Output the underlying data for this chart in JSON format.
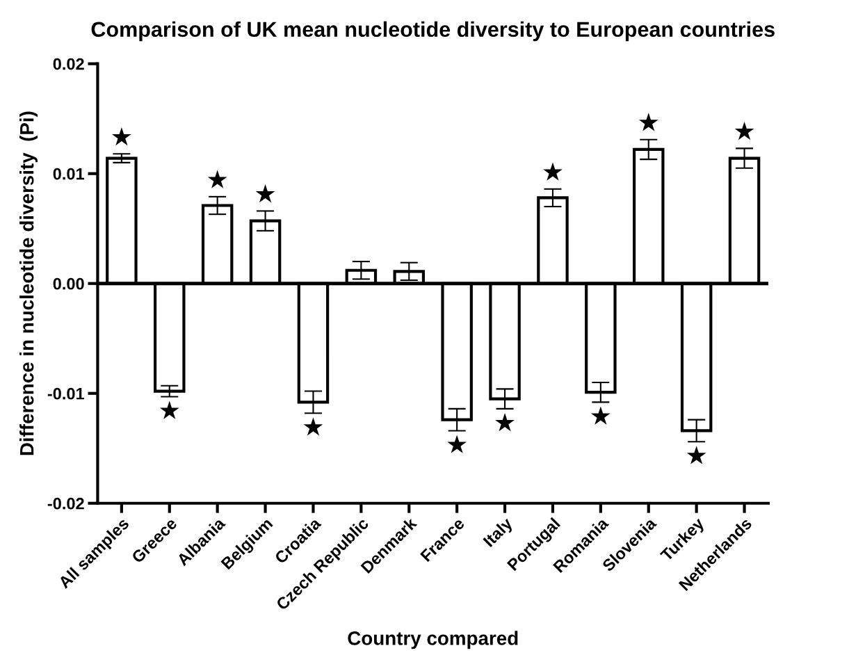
{
  "chart_data": {
    "type": "bar",
    "title": "Comparison of UK mean nucleotide diversity to European countries",
    "xlabel": "Country compared",
    "ylabel": "Difference in nucleotide diversity  (Pi)",
    "categories": [
      "All samples",
      "Greece",
      "Albania",
      "Belgium",
      "Croatia",
      "Czech Republic",
      "Denmark",
      "France",
      "Italy",
      "Portugal",
      "Romania",
      "Slovenia",
      "Turkey",
      "Netherlands"
    ],
    "values": [
      0.0114,
      -0.0098,
      0.0071,
      0.0057,
      -0.0108,
      0.0012,
      0.0011,
      -0.0124,
      -0.0105,
      0.0078,
      -0.0099,
      0.0122,
      -0.0134,
      0.0114
    ],
    "errors": [
      0.0004,
      0.0005,
      0.0008,
      0.0009,
      0.001,
      0.0008,
      0.0008,
      0.001,
      0.0009,
      0.0008,
      0.0009,
      0.0009,
      0.001,
      0.0009
    ],
    "color": "#ffffff",
    "ylim": [
      -0.02,
      0.02
    ],
    "yticks": [
      {
        "value": -0.02,
        "label": "-0.02"
      },
      {
        "value": -0.01,
        "label": "-0.01"
      },
      {
        "value": 0,
        "label": "0.00"
      },
      {
        "value": 0.01,
        "label": "0.01"
      },
      {
        "value": 0.02,
        "label": "0.02"
      }
    ],
    "ref_lines": [
      {
        "axis": "y",
        "value": 0,
        "color": "#000000"
      }
    ],
    "value_labels": [
      "★",
      "★",
      "★",
      "★",
      "★",
      null,
      null,
      "★",
      "★",
      "★",
      "★",
      "★",
      "★",
      "★"
    ],
    "grid": false,
    "legend": false
  }
}
